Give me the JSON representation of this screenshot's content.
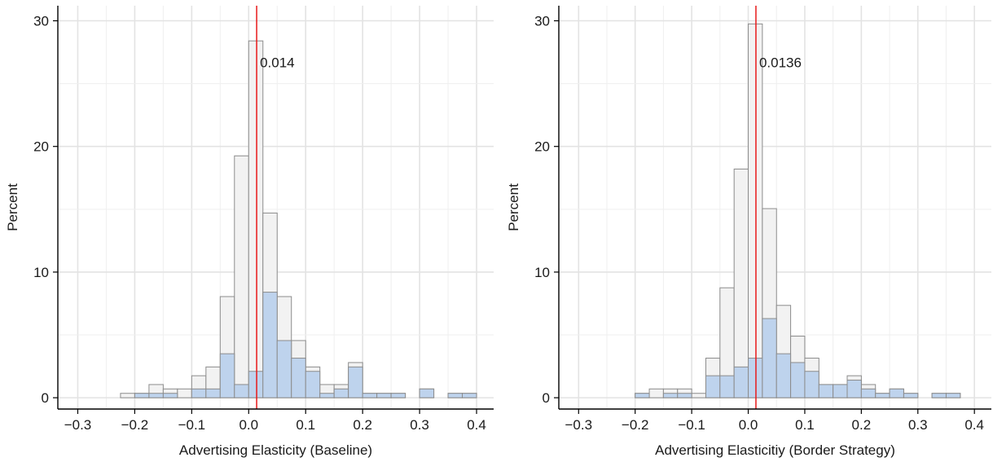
{
  "colors": {
    "outer_fill": "#f2f2f2",
    "inner_fill": "#bed3ed",
    "bar_stroke": "#8c8c8c",
    "marker_line": "#e8191a",
    "grid": "#e3e3e3",
    "axis": "#000000"
  },
  "chart_data": [
    {
      "type": "bar",
      "xlabel": "Advertising Elasticity (Baseline)",
      "ylabel": "Percent",
      "xlim": [
        -0.335,
        0.43
      ],
      "ylim": [
        -0.9,
        31.2
      ],
      "x_ticks": [
        -0.3,
        -0.2,
        -0.1,
        0.0,
        0.1,
        0.2,
        0.3,
        0.4
      ],
      "x_tick_labels": [
        "−0.3",
        "−0.2",
        "−0.1",
        "0.0",
        "0.1",
        "0.2",
        "0.3",
        "0.4"
      ],
      "y_ticks": [
        0,
        10,
        20,
        30
      ],
      "y_tick_labels": [
        "0",
        "10",
        "20",
        "30"
      ],
      "grid": true,
      "bin_start": -0.275,
      "bin_width": 0.025,
      "series": [
        {
          "values": [
            0,
            0,
            0.35,
            0.35,
            1.05,
            0.7,
            0.7,
            1.75,
            2.45,
            8.05,
            19.25,
            28.4,
            14.7,
            8.05,
            4.55,
            2.45,
            1.05,
            1.05,
            2.8,
            0.35,
            0.35,
            0.35,
            0,
            0.7,
            0,
            0.35,
            0.35
          ]
        },
        {
          "values": [
            0,
            0,
            0,
            0.35,
            0.35,
            0.35,
            0,
            0.7,
            0.7,
            3.5,
            1.05,
            2.1,
            8.4,
            4.55,
            3.15,
            2.1,
            0.35,
            0.7,
            2.45,
            0.35,
            0.35,
            0.35,
            0,
            0.7,
            0,
            0.35,
            0.35
          ]
        }
      ],
      "marker": {
        "x": 0.014,
        "label": "0.014"
      }
    },
    {
      "type": "bar",
      "xlabel": "Advertising Elasticitiy (Border Strategy)",
      "ylabel": "Percent",
      "xlim": [
        -0.335,
        0.43
      ],
      "ylim": [
        -0.9,
        31.2
      ],
      "x_ticks": [
        -0.3,
        -0.2,
        -0.1,
        0.0,
        0.1,
        0.2,
        0.3,
        0.4
      ],
      "x_tick_labels": [
        "−0.3",
        "−0.2",
        "−0.1",
        "0.0",
        "0.1",
        "0.2",
        "0.3",
        "0.4"
      ],
      "y_ticks": [
        0,
        10,
        20,
        30
      ],
      "y_tick_labels": [
        "0",
        "10",
        "20",
        "30"
      ],
      "grid": true,
      "bin_start": -0.275,
      "bin_width": 0.025,
      "series": [
        {
          "values": [
            0,
            0,
            0,
            0.35,
            0.7,
            0.7,
            0.7,
            0.35,
            3.15,
            8.75,
            18.2,
            29.75,
            15.05,
            7.35,
            4.9,
            3.15,
            1.05,
            1.05,
            1.75,
            1.05,
            0.35,
            0.7,
            0.35,
            0,
            0.35,
            0.35,
            0
          ]
        },
        {
          "values": [
            0,
            0,
            0,
            0.35,
            0,
            0.35,
            0.35,
            0,
            1.75,
            1.75,
            2.45,
            3.15,
            6.3,
            3.5,
            2.8,
            2.1,
            1.05,
            1.05,
            1.4,
            0.7,
            0.35,
            0.7,
            0.35,
            0,
            0.35,
            0.35,
            0
          ]
        }
      ],
      "marker": {
        "x": 0.0136,
        "label": "0.0136"
      }
    }
  ]
}
